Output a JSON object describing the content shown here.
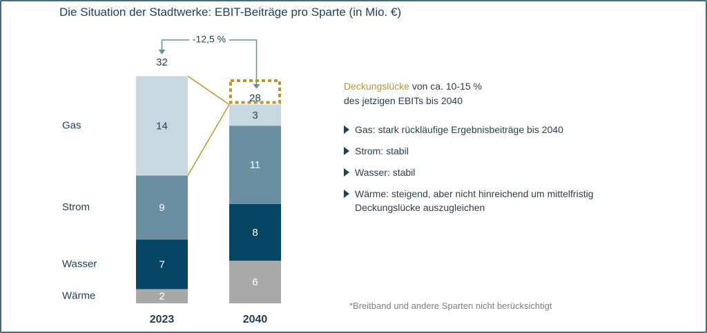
{
  "title": "Die Situation der Stadtwerke: EBIT-Beiträge pro Sparte (in Mio. €)",
  "chart_data": {
    "type": "bar",
    "stacked": true,
    "categories": [
      "2023",
      "2040"
    ],
    "series": [
      {
        "name": "Wärme",
        "values": [
          2,
          6
        ],
        "color": "#a9a9a9"
      },
      {
        "name": "Wasser",
        "values": [
          7,
          8
        ],
        "color": "#064564"
      },
      {
        "name": "Strom",
        "values": [
          9,
          11
        ],
        "color": "#6a8fa1"
      },
      {
        "name": "Gas",
        "values": [
          14,
          3
        ],
        "color": "#c9d8e0"
      }
    ],
    "totals": [
      32,
      28
    ],
    "change_label": "-12,5 %",
    "gap_box_color": "#b8962a",
    "legend": "left"
  },
  "gap_note": {
    "highlight": "Deckungslücke",
    "line1_rest": " von ca. 10-15 %",
    "line2": "des jetzigen EBITs bis 2040"
  },
  "bullets": [
    "Gas: stark rückläufige Ergebnisbeiträge bis 2040",
    "Strom: stabil",
    "Wasser: stabil",
    "Wärme: steigend, aber nicht hinreichend um mittelfristig Deckungslücke auszugleichen"
  ],
  "footnote": "*Breitband und andere Sparten nicht berücksichtigt"
}
